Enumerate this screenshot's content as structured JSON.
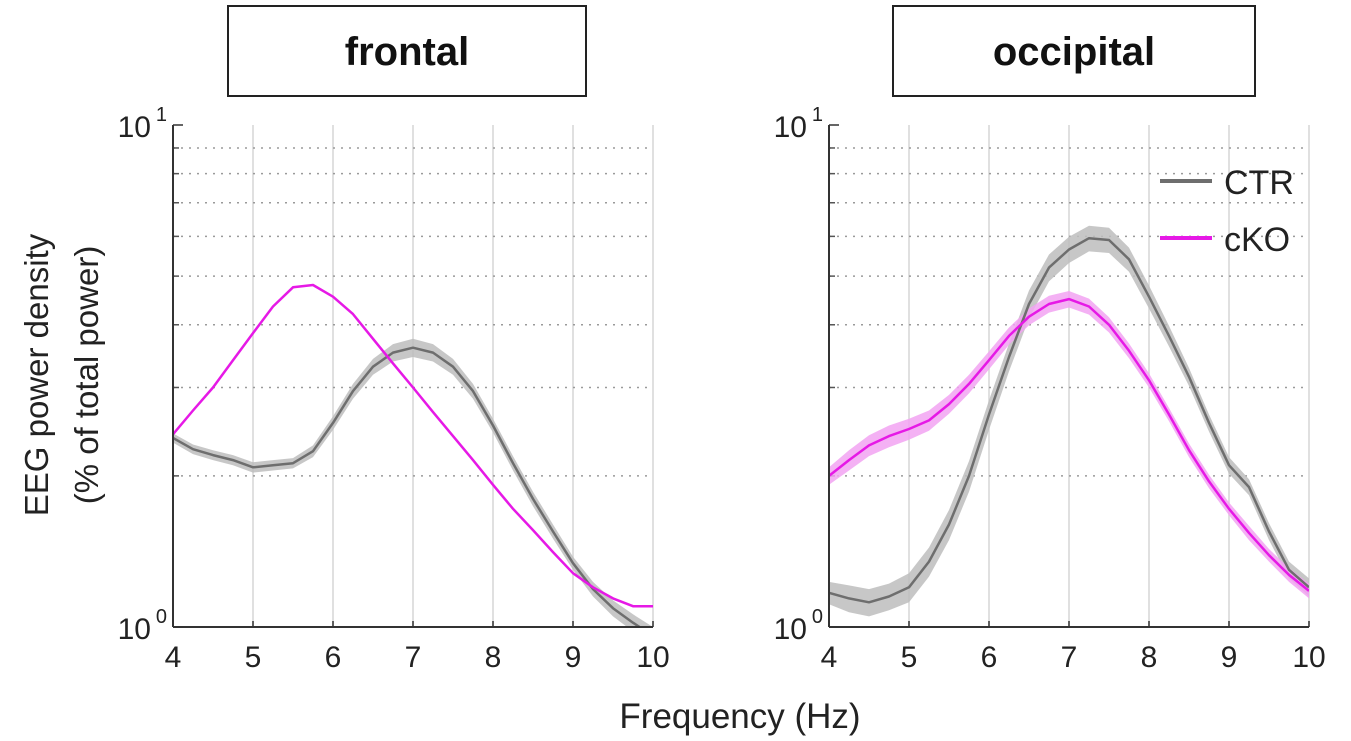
{
  "figure": {
    "ylabel_line1": "EEG power density",
    "ylabel_line2": "(% of total power)",
    "xlabel": "Frequency (Hz)"
  },
  "chart_data": [
    {
      "type": "line",
      "title": "frontal",
      "xlabel": "Frequency (Hz)",
      "ylabel": "EEG power density (% of total power)",
      "yscale": "log",
      "xlim": [
        4,
        10
      ],
      "ylim": [
        1,
        10
      ],
      "xticks": [
        "4",
        "5",
        "6",
        "7",
        "8",
        "9",
        "10"
      ],
      "yticks": [
        {
          "base": "10",
          "exp": "0"
        },
        {
          "base": "10",
          "exp": "1"
        }
      ],
      "grid": true,
      "x": [
        4.0,
        4.25,
        4.5,
        4.75,
        5.0,
        5.25,
        5.5,
        5.75,
        6.0,
        6.25,
        6.5,
        6.75,
        7.0,
        7.25,
        7.5,
        7.75,
        8.0,
        8.25,
        8.5,
        8.75,
        9.0,
        9.25,
        9.5,
        9.75,
        10.0
      ],
      "series": [
        {
          "name": "CTR",
          "color": "#6e6e6e",
          "band_color": "#bdbdbd",
          "values": [
            2.38,
            2.26,
            2.2,
            2.15,
            2.08,
            2.1,
            2.12,
            2.24,
            2.55,
            2.95,
            3.3,
            3.52,
            3.6,
            3.52,
            3.3,
            2.95,
            2.52,
            2.12,
            1.8,
            1.55,
            1.34,
            1.19,
            1.09,
            1.02,
            0.96
          ],
          "band": [
            0.05,
            0.05,
            0.05,
            0.05,
            0.05,
            0.05,
            0.05,
            0.06,
            0.08,
            0.1,
            0.12,
            0.14,
            0.15,
            0.14,
            0.12,
            0.1,
            0.08,
            0.07,
            0.06,
            0.05,
            0.04,
            0.04,
            0.04,
            0.04,
            0.04
          ]
        },
        {
          "name": "cKO",
          "color": "#e619e6",
          "band_color": "#f2a3f2",
          "values": [
            2.42,
            2.7,
            3.0,
            3.4,
            3.85,
            4.35,
            4.75,
            4.8,
            4.55,
            4.2,
            3.75,
            3.35,
            3.0,
            2.68,
            2.4,
            2.15,
            1.92,
            1.72,
            1.56,
            1.41,
            1.28,
            1.2,
            1.14,
            1.1,
            1.1
          ]
        },
        {
          "name": "cKO",
          "hidden_band": true
        }
      ]
    },
    {
      "type": "line",
      "title": "occipital",
      "xlabel": "Frequency (Hz)",
      "ylabel": "EEG power density (% of total power)",
      "yscale": "log",
      "xlim": [
        4,
        10
      ],
      "ylim": [
        1,
        10
      ],
      "xticks": [
        "4",
        "5",
        "6",
        "7",
        "8",
        "9",
        "10"
      ],
      "yticks": [
        {
          "base": "10",
          "exp": "0"
        },
        {
          "base": "10",
          "exp": "1"
        }
      ],
      "grid": true,
      "legend": {
        "position": "top-right",
        "entries": [
          "CTR",
          "cKO"
        ]
      },
      "x": [
        4.0,
        4.25,
        4.5,
        4.75,
        5.0,
        5.25,
        5.5,
        5.75,
        6.0,
        6.25,
        6.5,
        6.75,
        7.0,
        7.25,
        7.5,
        7.75,
        8.0,
        8.25,
        8.5,
        8.75,
        9.0,
        9.25,
        9.5,
        9.75,
        10.0
      ],
      "series": [
        {
          "name": "CTR",
          "color": "#6e6e6e",
          "band_color": "#bdbdbd",
          "values": [
            1.17,
            1.14,
            1.12,
            1.15,
            1.2,
            1.35,
            1.6,
            2.0,
            2.65,
            3.45,
            4.4,
            5.2,
            5.65,
            5.95,
            5.9,
            5.4,
            4.55,
            3.8,
            3.15,
            2.55,
            2.1,
            1.9,
            1.55,
            1.3,
            1.2
          ],
          "band": [
            0.06,
            0.07,
            0.07,
            0.07,
            0.08,
            0.09,
            0.11,
            0.14,
            0.18,
            0.22,
            0.28,
            0.32,
            0.34,
            0.35,
            0.34,
            0.3,
            0.24,
            0.18,
            0.13,
            0.1,
            0.08,
            0.07,
            0.06,
            0.05,
            0.05
          ]
        },
        {
          "name": "cKO",
          "color": "#e619e6",
          "band_color": "#f2a3f2",
          "values": [
            2.0,
            2.15,
            2.3,
            2.4,
            2.48,
            2.58,
            2.78,
            3.05,
            3.4,
            3.8,
            4.15,
            4.4,
            4.5,
            4.35,
            4.0,
            3.55,
            3.1,
            2.65,
            2.25,
            1.95,
            1.72,
            1.54,
            1.39,
            1.27,
            1.18
          ],
          "band": [
            0.08,
            0.1,
            0.11,
            0.12,
            0.12,
            0.12,
            0.12,
            0.13,
            0.14,
            0.15,
            0.16,
            0.17,
            0.17,
            0.16,
            0.14,
            0.12,
            0.1,
            0.08,
            0.07,
            0.06,
            0.05,
            0.05,
            0.04,
            0.04,
            0.04
          ]
        }
      ]
    }
  ]
}
